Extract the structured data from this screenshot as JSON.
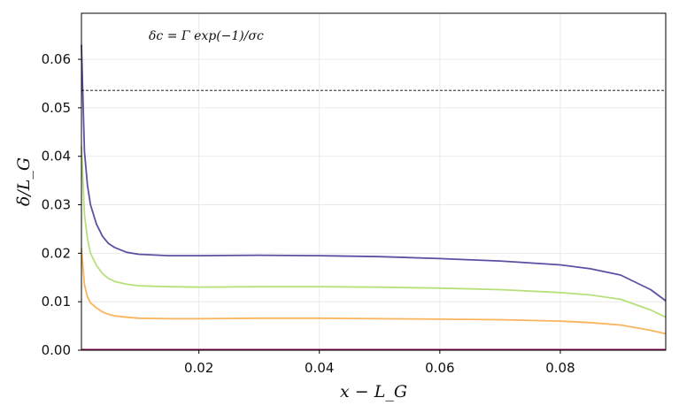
{
  "chart_data": {
    "type": "line",
    "title": "",
    "xlabel": "x − L_G",
    "ylabel": "δ/L_G",
    "xlim": [
      0.0005,
      0.0975
    ],
    "ylim": [
      0.0,
      0.0695
    ],
    "xticks": [
      0.02,
      0.04,
      0.06,
      0.08
    ],
    "xtick_labels": [
      "0.02",
      "0.04",
      "0.06",
      "0.08"
    ],
    "yticks": [
      0.0,
      0.01,
      0.02,
      0.03,
      0.04,
      0.05,
      0.06
    ],
    "ytick_labels": [
      "0.00",
      "0.01",
      "0.02",
      "0.03",
      "0.04",
      "0.05",
      "0.06"
    ],
    "grid": true,
    "legend": "none",
    "annotation": "δc = Γ exp(−1)/σc",
    "reference_line": {
      "y": 0.0536,
      "style": "dashed",
      "color": "#000000"
    },
    "x": [
      0.0005,
      0.001,
      0.0015,
      0.002,
      0.003,
      0.004,
      0.005,
      0.006,
      0.008,
      0.01,
      0.015,
      0.02,
      0.03,
      0.04,
      0.05,
      0.06,
      0.07,
      0.08,
      0.085,
      0.09,
      0.095,
      0.0975
    ],
    "series": [
      {
        "color": "#5e4fa2",
        "values": [
          0.063,
          0.041,
          0.034,
          0.03,
          0.026,
          0.0235,
          0.022,
          0.0212,
          0.0202,
          0.0198,
          0.0195,
          0.0195,
          0.0196,
          0.0195,
          0.0193,
          0.0189,
          0.0184,
          0.0176,
          0.0168,
          0.0155,
          0.0125,
          0.0102
        ]
      },
      {
        "color": "#b7e07a",
        "values": [
          0.042,
          0.028,
          0.023,
          0.02,
          0.0175,
          0.0158,
          0.0148,
          0.0142,
          0.0136,
          0.0133,
          0.0131,
          0.013,
          0.0131,
          0.0131,
          0.013,
          0.0128,
          0.0125,
          0.0119,
          0.0114,
          0.0105,
          0.0083,
          0.0068
        ]
      },
      {
        "color": "#fbb35c",
        "values": [
          0.021,
          0.0135,
          0.011,
          0.0098,
          0.0087,
          0.0079,
          0.0074,
          0.0071,
          0.0068,
          0.0066,
          0.0065,
          0.0065,
          0.0066,
          0.0066,
          0.0065,
          0.0064,
          0.0063,
          0.006,
          0.0057,
          0.0052,
          0.0041,
          0.0034
        ]
      },
      {
        "color": "#8e0152",
        "values": [
          0.0001,
          0.0001,
          0.0001,
          0.0001,
          0.0001,
          0.0001,
          0.0001,
          0.0001,
          0.0001,
          0.0001,
          0.0001,
          0.0001,
          0.0001,
          0.0001,
          0.0001,
          0.0001,
          0.0001,
          0.0001,
          0.0001,
          0.0001,
          0.0001,
          0.0001
        ]
      }
    ]
  }
}
